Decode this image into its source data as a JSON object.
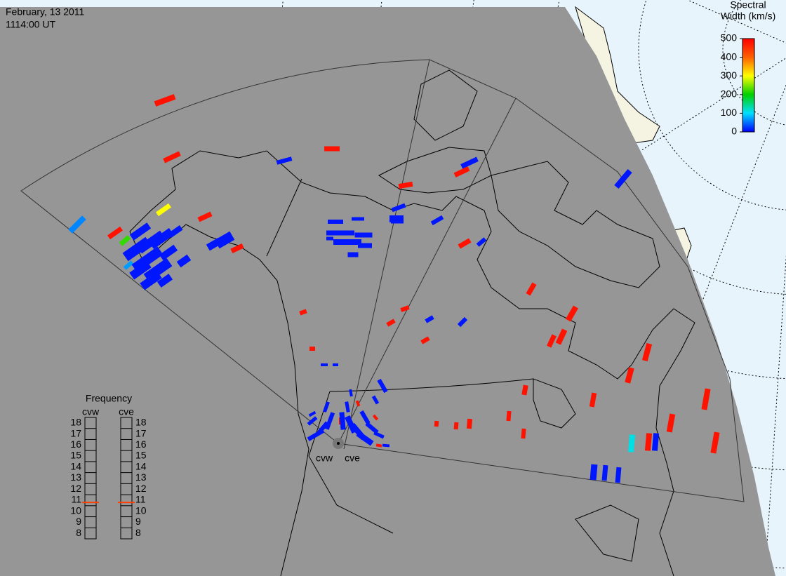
{
  "header": {
    "date": "February, 13 2011",
    "time": "1114:00 UT"
  },
  "colorbar": {
    "title_lines": [
      "Spectral",
      "Width (km/s)"
    ],
    "ticks": [
      0,
      100,
      200,
      300,
      400,
      500
    ],
    "range": [
      0,
      500
    ],
    "colors": [
      "#0000ff",
      "#00e0ff",
      "#00d000",
      "#ffff00",
      "#ff6000",
      "#ff0000"
    ]
  },
  "frequency": {
    "title": "Frequency",
    "range": [
      8,
      18
    ],
    "ticks": [
      8,
      9,
      10,
      11,
      12,
      13,
      14,
      15,
      16,
      17,
      18
    ],
    "marker_color": "#ff4000",
    "radars": [
      {
        "name": "cvw",
        "value": 10.8
      },
      {
        "name": "cve",
        "value": 10.8
      }
    ]
  },
  "sites": [
    {
      "label": "cvw"
    },
    {
      "label": "cve"
    }
  ],
  "echoes": {
    "spectral_width": [
      480,
      480,
      480,
      480,
      480,
      480,
      480,
      480,
      480,
      480,
      480,
      480,
      480,
      480,
      480,
      480,
      480,
      480,
      480,
      480,
      480,
      480,
      480,
      480,
      480,
      480,
      480,
      480,
      480,
      480,
      480,
      480,
      480,
      480,
      480,
      60,
      10,
      10,
      10,
      10,
      10,
      10,
      10,
      10,
      10,
      10,
      10,
      10,
      10,
      300,
      220,
      110,
      70,
      10,
      10,
      10,
      10,
      10,
      10,
      10,
      10,
      10,
      10,
      10,
      10,
      10,
      10,
      10,
      10,
      10,
      10,
      10,
      10,
      10,
      10,
      10,
      10,
      10,
      10,
      10,
      10,
      10,
      10,
      10,
      10,
      10,
      10,
      10,
      10,
      10,
      10,
      10,
      10,
      10,
      10,
      10
    ]
  }
}
